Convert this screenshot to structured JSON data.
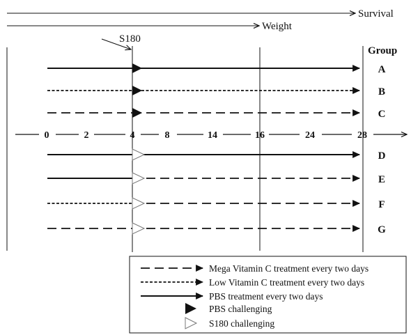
{
  "top_labels": {
    "survival": "Survival",
    "weight": "Weight",
    "s180": "S180"
  },
  "group_header": "Group",
  "axis_ticks": [
    "0",
    "2",
    "4",
    "8",
    "14",
    "16",
    "24",
    "28"
  ],
  "groups": [
    {
      "label": "A",
      "before": "solid",
      "after": "solid",
      "marker": "filled"
    },
    {
      "label": "B",
      "before": "dotted",
      "after": "dotted",
      "marker": "filled"
    },
    {
      "label": "C",
      "before": "dashed",
      "after": "dashed",
      "marker": "filled"
    },
    {
      "label": "D",
      "before": "solid",
      "after": "solid",
      "marker": "open"
    },
    {
      "label": "E",
      "before": "solid",
      "after": "dashed",
      "marker": "open"
    },
    {
      "label": "F",
      "before": "dotted",
      "after": "dashed",
      "marker": "open"
    },
    {
      "label": "G",
      "before": "dashed",
      "after": "dashed",
      "marker": "open"
    }
  ],
  "legend": [
    {
      "style": "dashed",
      "text": "Mega Vitamin C  treatment every two days"
    },
    {
      "style": "dotted",
      "text": "Low Vitamin C  treatment every two days"
    },
    {
      "style": "solid",
      "text": "PBS treatment every two days"
    },
    {
      "style": "filled-triangle",
      "text": "PBS challenging"
    },
    {
      "style": "open-triangle",
      "text": "S180 challenging"
    }
  ],
  "colors": {
    "ink": "#111111",
    "background": "#ffffff"
  }
}
